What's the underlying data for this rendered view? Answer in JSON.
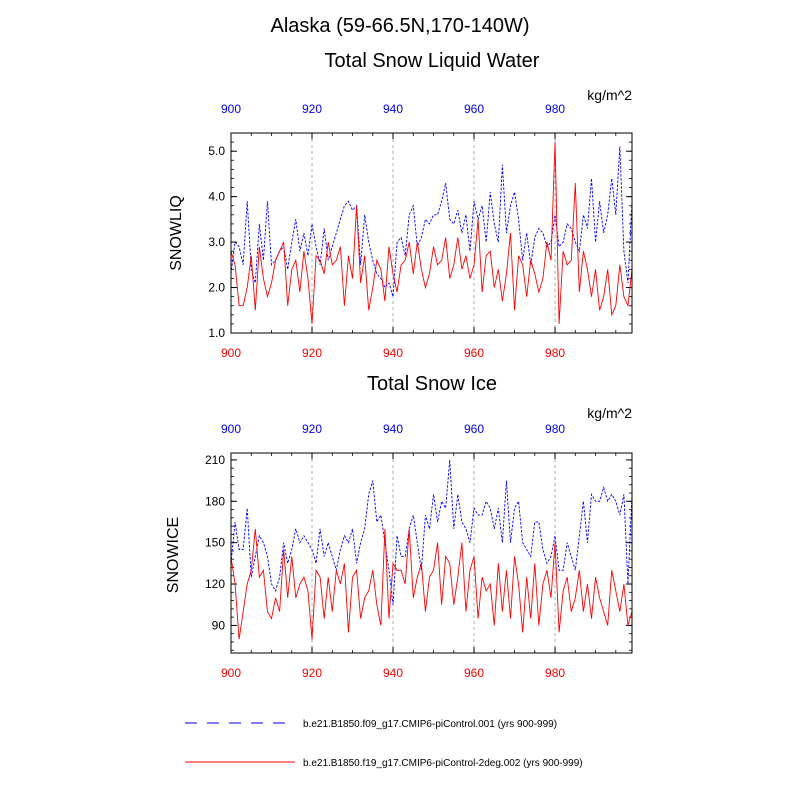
{
  "figure": {
    "title": "Alaska (59-66.5N,170-140W)"
  },
  "colors": {
    "series_a": "#0000ff",
    "series_b": "#ff0000",
    "top_tick_labels": "#0000ff",
    "bottom_tick_labels": "#ff0000",
    "grid": "#9a9a9a"
  },
  "legend": {
    "placement": "bottom",
    "items": [
      {
        "label": "b.e21.B1850.f09_g17.CMIP6-piControl.001 (yrs 900-999)",
        "style": "dashed",
        "color": "#0000ff"
      },
      {
        "label": "b.e21.B1850.f19_g17.CMIP6-piControl-2deg.002 (yrs 900-999)",
        "style": "solid",
        "color": "#ff0000"
      }
    ]
  },
  "chart_data": [
    {
      "type": "line",
      "title": "Total Snow Liquid Water",
      "units": "kg/m^2",
      "ylabel": "SNOWLIQ",
      "xlim": [
        900,
        999
      ],
      "ylim": [
        1.0,
        5.4
      ],
      "yticks": [
        1.0,
        2.0,
        3.0,
        4.0,
        5.0
      ],
      "ytick_labels": [
        "1.0",
        "2.0",
        "3.0",
        "4.0",
        "5.0"
      ],
      "xticks": [
        900,
        920,
        940,
        960,
        980
      ],
      "xtick_labels": [
        "900",
        "920",
        "940",
        "960",
        "980"
      ],
      "vgrid": [
        920,
        940,
        960,
        980
      ],
      "x": [
        900,
        901,
        902,
        903,
        904,
        905,
        906,
        907,
        908,
        909,
        910,
        911,
        912,
        913,
        914,
        915,
        916,
        917,
        918,
        919,
        920,
        921,
        922,
        923,
        924,
        925,
        926,
        927,
        928,
        929,
        930,
        931,
        932,
        933,
        934,
        935,
        936,
        937,
        938,
        939,
        940,
        941,
        942,
        943,
        944,
        945,
        946,
        947,
        948,
        949,
        950,
        951,
        952,
        953,
        954,
        955,
        956,
        957,
        958,
        959,
        960,
        961,
        962,
        963,
        964,
        965,
        966,
        967,
        968,
        969,
        970,
        971,
        972,
        973,
        974,
        975,
        976,
        977,
        978,
        979,
        980,
        981,
        982,
        983,
        984,
        985,
        986,
        987,
        988,
        989,
        990,
        991,
        992,
        993,
        994,
        995,
        996,
        997,
        998,
        999
      ],
      "series": [
        {
          "name": "b.e21.B1850.f09_g17.CMIP6-piControl.001 (yrs 900-999)",
          "style": "dashed",
          "color": "#0000ff",
          "values": [
            2.3,
            3.0,
            2.9,
            2.5,
            3.9,
            2.4,
            2.1,
            3.4,
            2.6,
            3.9,
            2.5,
            2.6,
            2.8,
            2.9,
            2.4,
            3.0,
            3.5,
            2.8,
            3.2,
            2.7,
            3.4,
            2.9,
            2.5,
            3.3,
            2.6,
            2.9,
            3.2,
            3.5,
            3.8,
            3.9,
            3.7,
            3.8,
            2.5,
            3.6,
            3.0,
            2.6,
            2.3,
            2.2,
            2.0,
            2.1,
            1.8,
            3.0,
            3.1,
            2.7,
            3.6,
            3.8,
            2.9,
            3.1,
            3.5,
            3.4,
            3.6,
            3.6,
            3.9,
            4.3,
            3.5,
            3.4,
            3.7,
            3.2,
            3.6,
            2.8,
            3.9,
            3.5,
            3.8,
            3.0,
            4.1,
            3.4,
            3.0,
            4.7,
            3.2,
            3.8,
            4.1,
            3.5,
            2.6,
            3.2,
            2.5,
            3.1,
            3.3,
            3.2,
            2.9,
            3.0,
            3.6,
            2.9,
            3.0,
            3.4,
            3.3,
            3.0,
            2.8,
            3.6,
            3.3,
            4.4,
            3.0,
            3.9,
            3.2,
            3.6,
            4.4,
            3.6,
            5.1,
            2.8,
            2.1,
            3.9
          ]
        },
        {
          "name": "b.e21.B1850.f19_g17.CMIP6-piControl-2deg.002 (yrs 900-999)",
          "style": "solid",
          "color": "#ff0000",
          "values": [
            2.8,
            2.5,
            1.6,
            1.6,
            2.0,
            2.7,
            1.5,
            2.9,
            2.2,
            1.8,
            2.1,
            2.6,
            2.8,
            3.0,
            1.6,
            2.4,
            2.6,
            1.9,
            2.8,
            2.2,
            1.2,
            2.7,
            2.6,
            2.3,
            3.0,
            2.5,
            2.6,
            2.9,
            1.6,
            2.7,
            2.2,
            3.8,
            2.1,
            2.7,
            1.5,
            2.0,
            2.6,
            2.4,
            1.7,
            2.9,
            2.3,
            1.9,
            2.5,
            2.6,
            3.0,
            2.3,
            3.0,
            2.4,
            2.0,
            2.3,
            2.9,
            2.5,
            2.6,
            3.1,
            2.2,
            2.5,
            3.1,
            2.4,
            2.7,
            2.2,
            2.5,
            3.5,
            1.9,
            2.7,
            2.8,
            2.0,
            2.4,
            1.7,
            2.3,
            3.2,
            1.5,
            2.7,
            2.5,
            1.8,
            2.6,
            2.3,
            1.9,
            2.2,
            3.0,
            2.6,
            5.2,
            1.2,
            2.8,
            2.5,
            2.6,
            4.3,
            1.9,
            2.8,
            2.4,
            1.8,
            2.4,
            1.5,
            1.8,
            2.4,
            1.4,
            1.6,
            2.5,
            1.8,
            1.6,
            2.4
          ]
        }
      ]
    },
    {
      "type": "line",
      "title": "Total Snow Ice",
      "units": "kg/m^2",
      "ylabel": "SNOWICE",
      "xlim": [
        900,
        999
      ],
      "ylim": [
        70,
        215
      ],
      "yticks": [
        90,
        120,
        150,
        180,
        210
      ],
      "ytick_labels": [
        "90",
        "120",
        "150",
        "180",
        "210"
      ],
      "xticks": [
        900,
        920,
        940,
        960,
        980
      ],
      "xtick_labels": [
        "900",
        "920",
        "940",
        "960",
        "980"
      ],
      "vgrid": [
        920,
        940,
        960,
        980
      ],
      "x": [
        900,
        901,
        902,
        903,
        904,
        905,
        906,
        907,
        908,
        909,
        910,
        911,
        912,
        913,
        914,
        915,
        916,
        917,
        918,
        919,
        920,
        921,
        922,
        923,
        924,
        925,
        926,
        927,
        928,
        929,
        930,
        931,
        932,
        933,
        934,
        935,
        936,
        937,
        938,
        939,
        940,
        941,
        942,
        943,
        944,
        945,
        946,
        947,
        948,
        949,
        950,
        951,
        952,
        953,
        954,
        955,
        956,
        957,
        958,
        959,
        960,
        961,
        962,
        963,
        964,
        965,
        966,
        967,
        968,
        969,
        970,
        971,
        972,
        973,
        974,
        975,
        976,
        977,
        978,
        979,
        980,
        981,
        982,
        983,
        984,
        985,
        986,
        987,
        988,
        989,
        990,
        991,
        992,
        993,
        994,
        995,
        996,
        997,
        998,
        999
      ],
      "series": [
        {
          "name": "b.e21.B1850.f09_g17.CMIP6-piControl.001 (yrs 900-999)",
          "style": "dashed",
          "color": "#0000ff",
          "values": [
            135,
            165,
            145,
            145,
            175,
            125,
            140,
            155,
            150,
            140,
            120,
            115,
            125,
            150,
            135,
            145,
            160,
            150,
            155,
            150,
            145,
            135,
            160,
            140,
            150,
            140,
            130,
            145,
            155,
            150,
            160,
            135,
            150,
            160,
            185,
            195,
            165,
            170,
            150,
            130,
            105,
            155,
            140,
            140,
            160,
            170,
            150,
            130,
            170,
            160,
            185,
            165,
            180,
            175,
            210,
            160,
            185,
            165,
            160,
            150,
            175,
            170,
            170,
            180,
            175,
            160,
            175,
            150,
            195,
            150,
            175,
            180,
            150,
            145,
            140,
            165,
            165,
            145,
            135,
            140,
            155,
            130,
            130,
            150,
            140,
            130,
            155,
            180,
            150,
            185,
            180,
            180,
            190,
            180,
            185,
            180,
            170,
            185,
            120,
            185
          ]
        },
        {
          "name": "b.e21.B1850.f19_g17.CMIP6-piControl-2deg.002 (yrs 900-999)",
          "style": "solid",
          "color": "#ff0000",
          "values": [
            140,
            120,
            80,
            100,
            120,
            130,
            160,
            125,
            130,
            100,
            95,
            110,
            100,
            145,
            110,
            140,
            110,
            120,
            125,
            115,
            80,
            130,
            125,
            95,
            125,
            100,
            130,
            120,
            135,
            85,
            125,
            130,
            95,
            110,
            115,
            130,
            105,
            90,
            160,
            95,
            135,
            130,
            130,
            120,
            160,
            110,
            125,
            135,
            100,
            125,
            130,
            150,
            105,
            140,
            135,
            105,
            125,
            150,
            100,
            130,
            140,
            95,
            125,
            115,
            120,
            90,
            135,
            100,
            130,
            95,
            140,
            120,
            85,
            125,
            95,
            135,
            90,
            120,
            130,
            110,
            150,
            85,
            115,
            125,
            100,
            110,
            130,
            100,
            120,
            95,
            125,
            110,
            100,
            90,
            130,
            115,
            100,
            120,
            90,
            100
          ]
        }
      ]
    }
  ]
}
